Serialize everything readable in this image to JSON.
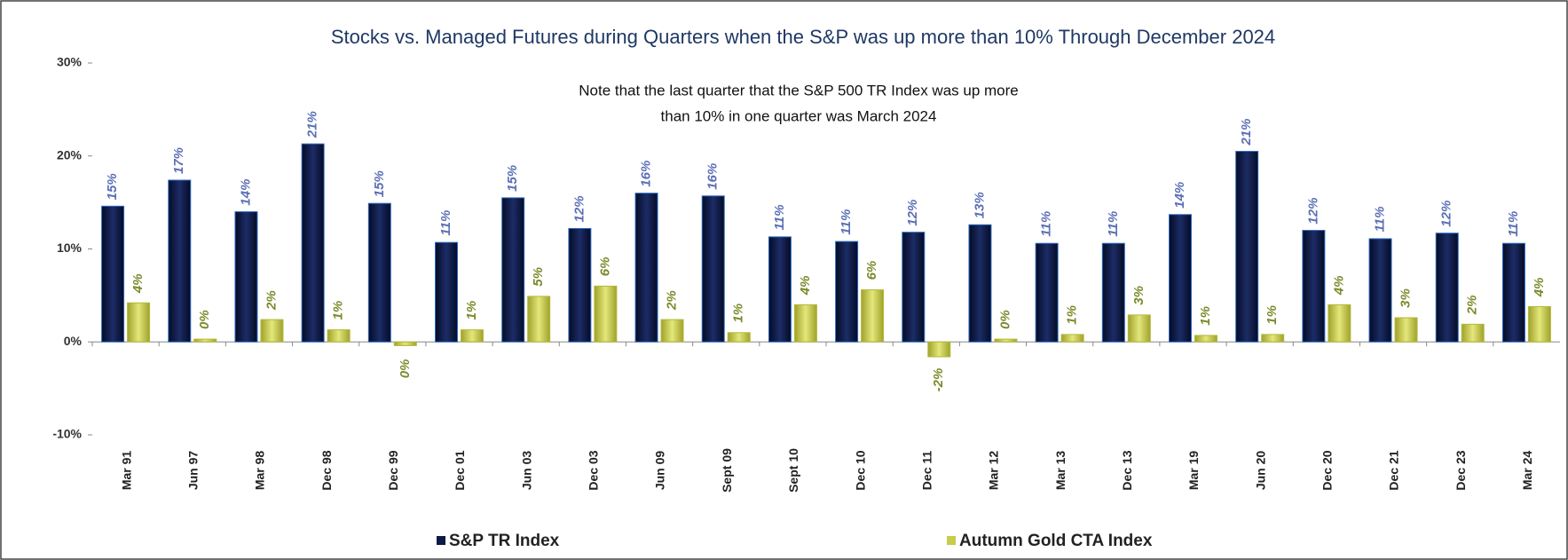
{
  "chart_data": {
    "type": "bar",
    "title": "Stocks vs. Managed Futures during Quarters when the S&P was up more than 10% Through December 2024",
    "annotation": [
      "Note that the last quarter that the S&P 500 TR Index was up more",
      "than 10% in one quarter was March 2024"
    ],
    "categories": [
      "Mar 91",
      "Jun 97",
      "Mar 98",
      "Dec 98",
      "Dec 99",
      "Dec 01",
      "Jun 03",
      "Dec 03",
      "Jun 09",
      "Sept 09",
      "Sept 10",
      "Dec 10",
      "Dec 11",
      "Mar 12",
      "Mar 13",
      "Dec 13",
      "Mar 19",
      "Jun 20",
      "Dec 20",
      "Dec 21",
      "Dec 23",
      "Mar 24"
    ],
    "series": [
      {
        "name": "S&P TR Index",
        "color": "#0d1a45",
        "label_color": "#5b6fb5",
        "values": [
          14.6,
          17.4,
          14.0,
          21.3,
          14.9,
          10.7,
          15.5,
          12.2,
          16.0,
          15.7,
          11.3,
          10.8,
          11.8,
          12.6,
          10.6,
          10.6,
          13.7,
          20.5,
          12.0,
          11.1,
          11.7,
          10.6
        ],
        "value_labels": [
          "15%",
          "17%",
          "14%",
          "21%",
          "15%",
          "11%",
          "15%",
          "12%",
          "16%",
          "16%",
          "11%",
          "11%",
          "12%",
          "13%",
          "11%",
          "11%",
          "14%",
          "21%",
          "12%",
          "11%",
          "12%",
          "11%"
        ]
      },
      {
        "name": "Autumn Gold CTA Index",
        "color": "#c8cc4a",
        "label_color": "#7a8a2a",
        "values": [
          4.2,
          0.3,
          2.4,
          1.3,
          -0.4,
          1.3,
          4.9,
          6.0,
          2.4,
          1.0,
          4.0,
          5.6,
          -1.6,
          0.3,
          0.8,
          2.9,
          0.7,
          0.8,
          4.0,
          2.6,
          1.9,
          3.8
        ],
        "value_labels": [
          "4%",
          "0%",
          "2%",
          "1%",
          "0%",
          "1%",
          "5%",
          "6%",
          "2%",
          "1%",
          "4%",
          "6%",
          "-2%",
          "0%",
          "1%",
          "3%",
          "1%",
          "1%",
          "4%",
          "3%",
          "2%",
          "4%"
        ]
      }
    ],
    "ylim": [
      -10,
      30
    ],
    "yticks": [
      {
        "value": -10,
        "label": "-10%"
      },
      {
        "value": 0,
        "label": "0%"
      },
      {
        "value": 10,
        "label": "10%"
      },
      {
        "value": 20,
        "label": "20%"
      },
      {
        "value": 30,
        "label": "30%"
      }
    ]
  }
}
